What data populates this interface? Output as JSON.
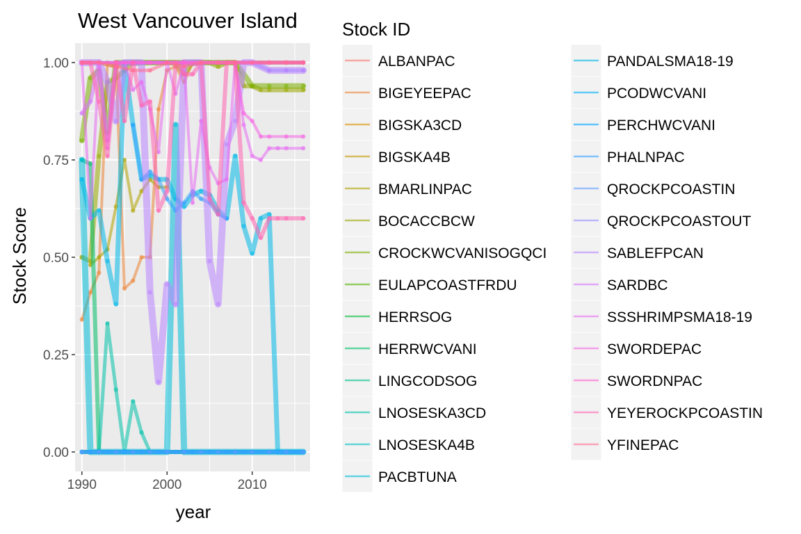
{
  "chart_data": {
    "type": "line",
    "title": "West Vancouver Island",
    "xlabel": "year",
    "ylabel": "Stock Score",
    "xlim": [
      1989.2,
      2016.8
    ],
    "ylim": [
      -0.05,
      1.05
    ],
    "x_ticks": [
      1990,
      2000,
      2010
    ],
    "y_ticks": [
      0.0,
      0.25,
      0.5,
      0.75,
      1.0
    ],
    "y_tick_labels": [
      "0.00",
      "0.25",
      "0.50",
      "0.75",
      "1.00"
    ],
    "grid": true,
    "legend": {
      "title": "Stock ID",
      "placement": "right",
      "columns": 2
    },
    "series": [
      {
        "name": "ALBANPAC",
        "color": "#F8766D",
        "x": [
          1990,
          1995,
          2000,
          2005,
          2010,
          2016
        ],
        "y": [
          1,
          1,
          1,
          1,
          1,
          1
        ]
      },
      {
        "name": "BIGEYEEPAC",
        "color": "#EB8335",
        "x": [
          1990,
          1991,
          1992,
          1993,
          1994,
          1995,
          1996,
          1997,
          1998,
          1999,
          2000,
          2001,
          2002,
          2003,
          2004,
          2005,
          2006,
          2007,
          2008,
          2009,
          2010,
          2011,
          2012,
          2014,
          2016
        ],
        "y": [
          0.34,
          0.41,
          0.46,
          1,
          0.99,
          0.42,
          0.44,
          0.5,
          0.5,
          0.88,
          0.98,
          0.99,
          0.95,
          1,
          1,
          1,
          1,
          1,
          1,
          1,
          1,
          1,
          1,
          1,
          1
        ]
      },
      {
        "name": "BIGSKA3CD",
        "color": "#DA8F00",
        "x": [
          1990,
          1992,
          1994,
          1995,
          1996,
          1997,
          1998,
          2000,
          2002,
          2004,
          2008
        ],
        "y": [
          0.0,
          0.0,
          0.0,
          0.0,
          0.0,
          0.0,
          0.0,
          0.0,
          0.0,
          0.0,
          0.0
        ]
      },
      {
        "name": "BIGSKA4B",
        "color": "#C49A00",
        "x": [
          1990,
          1992,
          1994,
          1996,
          1998,
          2000,
          2002,
          2004,
          2006,
          2008,
          2010,
          2012,
          2014,
          2016
        ],
        "y": [
          1,
          1,
          0.99,
          1,
          1,
          1,
          1,
          1,
          1,
          1,
          1,
          1,
          1,
          1
        ]
      },
      {
        "name": "BMARLINPAC",
        "color": "#AEA200",
        "x": [
          1991,
          1992,
          1993,
          1994,
          1995,
          1996,
          1997,
          1998,
          1999,
          2000
        ],
        "y": [
          0.48,
          0.5,
          0.52,
          0.63,
          0.75,
          0.62,
          0.67,
          0.7,
          0.68,
          0.68
        ]
      },
      {
        "name": "BOCACCBCW",
        "color": "#99A800",
        "x": [
          1990,
          1991,
          1992,
          1993,
          1994,
          1995,
          1996,
          1997,
          1998,
          1999,
          2000,
          2001,
          2002,
          2003,
          2004,
          2005,
          2006,
          2007,
          2008,
          2009,
          2010,
          2011,
          2012,
          2014,
          2016
        ],
        "y": [
          0.5,
          0.49,
          0.76,
          0.95,
          0.96,
          0.98,
          1,
          1,
          1,
          1,
          1,
          1,
          0.97,
          1,
          1,
          1,
          0.99,
          1,
          1,
          0.94,
          0.94,
          0.93,
          0.93,
          0.93,
          0.93
        ]
      },
      {
        "name": "CROCKWCVANISOGQCI",
        "color": "#7CAE00",
        "x": [
          1990,
          1991,
          1992,
          1993,
          1994,
          1995,
          1996,
          1998,
          2000,
          2002,
          2004,
          2006,
          2008,
          2010,
          2012,
          2014,
          2016
        ],
        "y": [
          0.8,
          0.96,
          0.98,
          0.82,
          1,
          1,
          1,
          1,
          1,
          1,
          1,
          1,
          1,
          0.94,
          0.94,
          0.94,
          0.94
        ]
      },
      {
        "name": "EULAPCOASTFRDU",
        "color": "#53B400",
        "x": [
          1990,
          1992,
          1994,
          1996,
          1998,
          2000,
          2002,
          2004,
          2006,
          2008,
          2010,
          2012,
          2014,
          2016
        ],
        "y": [
          0,
          0,
          0,
          0,
          0,
          0,
          0,
          0,
          0,
          0,
          0,
          0,
          0,
          0
        ]
      },
      {
        "name": "HERRSOG",
        "color": "#00BA38",
        "x": [
          1990,
          1992,
          1994,
          1996,
          1998,
          2000,
          2002,
          2004,
          2006,
          2008,
          2010,
          2012,
          2014,
          2016
        ],
        "y": [
          0,
          0,
          0,
          0,
          0,
          0,
          0,
          0,
          0,
          0,
          0,
          0,
          0,
          0
        ]
      },
      {
        "name": "HERRWCVANI",
        "color": "#00BE67",
        "x": [
          1990,
          1991,
          1992,
          1993,
          1994,
          1995,
          1996,
          1997,
          1998,
          1999,
          2000,
          2002,
          2004,
          2006,
          2008,
          2010,
          2012,
          2014,
          2016
        ],
        "y": [
          0.75,
          0.74,
          0.0,
          0.0,
          0.0,
          0.0,
          0.0,
          0.0,
          0.0,
          0.0,
          0.0,
          0.0,
          0.0,
          0.0,
          0.0,
          0.0,
          0.0,
          0.0,
          0.0
        ]
      },
      {
        "name": "LINGCODSOG",
        "color": "#00C08B",
        "x": [
          1990,
          1991,
          1992,
          1994,
          1996,
          1998,
          2000,
          2002,
          2004,
          2006,
          2008,
          2010,
          2012,
          2014,
          2016
        ],
        "y": [
          0.0,
          0.0,
          0.0,
          0.0,
          0.0,
          0.0,
          0.0,
          0.0,
          0.0,
          0.0,
          0.0,
          0.0,
          0.0,
          0.0,
          0.0
        ]
      },
      {
        "name": "LNOSESKA3CD",
        "color": "#00C1AA",
        "x": [
          1990,
          1991,
          1992,
          1993,
          1994,
          1995,
          1996,
          1997,
          1998,
          2000,
          2002,
          2004,
          2006,
          2008,
          2010,
          2012,
          2014,
          2016
        ],
        "y": [
          0.0,
          0.0,
          0.0,
          0.33,
          0.16,
          0.0,
          0.13,
          0.05,
          0.0,
          0.0,
          0.0,
          0.0,
          0.0,
          0.0,
          0.0,
          0.0,
          0.0,
          0.0
        ]
      },
      {
        "name": "LNOSESKA4B",
        "color": "#00BFC4",
        "x": [
          1990,
          1991,
          1992,
          1994,
          1996,
          1998,
          2000,
          2002,
          2004,
          2006,
          2008,
          2010,
          2012,
          2014,
          2016
        ],
        "y": [
          0,
          0,
          0,
          0,
          0,
          0,
          0,
          0,
          0,
          0,
          0,
          0,
          0,
          0,
          0
        ]
      },
      {
        "name": "PACBTUNA",
        "color": "#00BCD8",
        "x": [
          1990,
          1991,
          1992,
          1993,
          1994,
          1995,
          1996,
          1997,
          1998,
          1999,
          2000,
          2001,
          2002,
          2003,
          2004,
          2006,
          2008,
          2010,
          2012,
          2014,
          2016
        ],
        "y": [
          0.75,
          0.0,
          0.0,
          0.0,
          0.0,
          0.0,
          0.0,
          0.0,
          0.0,
          0.0,
          0.0,
          0.84,
          0.0,
          0.0,
          0.0,
          0.0,
          0.0,
          0.0,
          0.0,
          0.0,
          0.0
        ]
      },
      {
        "name": "PANDALSMA18-19",
        "color": "#00B8E7",
        "x": [
          1990,
          1991,
          1992,
          1993,
          1994,
          1995,
          1996,
          1997,
          1998,
          1999,
          2000,
          2001,
          2002,
          2003,
          2004,
          2005,
          2006,
          2007,
          2008,
          2009,
          2010,
          2011,
          2012,
          2013,
          2014,
          2016
        ],
        "y": [
          0.7,
          0.6,
          0.62,
          0.49,
          0.38,
          1,
          0.84,
          0.7,
          0.71,
          0.7,
          0.7,
          0.65,
          0.63,
          0.66,
          0.67,
          0.66,
          0.62,
          0.6,
          0.76,
          0.58,
          0.51,
          0.6,
          0.61,
          0.0,
          0.0,
          0.0
        ]
      },
      {
        "name": "PCODWCVANI",
        "color": "#00B0F6",
        "x": [
          1990,
          1992,
          1994,
          1996,
          1998,
          2000,
          2002,
          2004,
          2006,
          2008,
          2010,
          2012,
          2014,
          2016
        ],
        "y": [
          0,
          0,
          0,
          0,
          0,
          0,
          0,
          0,
          0,
          0,
          0,
          0,
          0,
          0
        ]
      },
      {
        "name": "PERCHWCVANI",
        "color": "#00A5FF",
        "x": [
          1990,
          1991,
          1992,
          1993,
          1994,
          1995,
          1996,
          1997,
          1998,
          1999,
          2000,
          2001,
          2002,
          2003,
          2004,
          2005,
          2006,
          2007,
          2008,
          2009,
          2010,
          2012,
          2014,
          2016
        ],
        "y": [
          0.0,
          0.0,
          0.0,
          0.0,
          0.0,
          0.0,
          0.0,
          0.0,
          0.0,
          0.0,
          0.0,
          0.0,
          0.0,
          0.0,
          0.0,
          0.0,
          0.0,
          0.0,
          0.0,
          0.0,
          0.0,
          0.0,
          0.0,
          0.0
        ]
      },
      {
        "name": "PHALNPAC",
        "color": "#35A2FF",
        "x": [
          1996,
          1997,
          1998,
          1999,
          2000,
          2001,
          2002,
          2003,
          2004,
          2005,
          2006,
          2007
        ],
        "y": [
          0.84,
          0.7,
          0.72,
          0.7,
          0.65,
          0.62,
          0.64,
          0.67,
          0.65,
          0.64,
          0.61,
          0.6
        ]
      },
      {
        "name": "QROCKPCOASTIN",
        "color": "#619CFF",
        "x": [
          1990,
          1992,
          1994,
          1996,
          1998,
          2000,
          2002,
          2004,
          2006,
          2008,
          2010,
          2012,
          2014,
          2016
        ],
        "y": [
          0,
          0,
          0,
          0,
          0,
          0,
          0,
          0,
          0,
          0,
          0,
          0,
          0,
          0
        ]
      },
      {
        "name": "QROCKPCOASTOUT",
        "color": "#9590FF",
        "x": [
          1990,
          1992,
          1994,
          1996,
          1998,
          2000,
          2002,
          2004,
          2006,
          2008,
          2010,
          2012,
          2014,
          2016
        ],
        "y": [
          1,
          1,
          1,
          1,
          1,
          1,
          1,
          1,
          1,
          1,
          1,
          0.98,
          0.98,
          0.98
        ]
      },
      {
        "name": "SABLEFPCAN",
        "color": "#B983FF",
        "x": [
          1990,
          1991,
          1992,
          1993,
          1994,
          1995,
          1996,
          1997,
          1998,
          1999,
          2000,
          2001,
          2002,
          2003,
          2004,
          2005,
          2006,
          2007,
          2008,
          2009,
          2010,
          2012,
          2014,
          2016
        ],
        "y": [
          1,
          1,
          1,
          0.95,
          0.85,
          1,
          1,
          1,
          0.41,
          0.18,
          0.43,
          0.38,
          1,
          1,
          1,
          0.49,
          0.38,
          0.79,
          0.85,
          1,
          1,
          0.98,
          0.98,
          0.98
        ]
      },
      {
        "name": "SARDBC",
        "color": "#D575FE",
        "x": [
          1990,
          1991,
          1992,
          1993,
          1994,
          1995,
          1996,
          1997,
          1998,
          1999,
          2000,
          2002,
          2004,
          2006,
          2008,
          2010,
          2012,
          2014,
          2016
        ],
        "y": [
          0.87,
          0.9,
          1,
          0.8,
          1,
          1,
          1,
          1,
          1,
          1,
          1,
          1,
          1,
          1,
          1,
          1,
          1,
          1,
          1
        ]
      },
      {
        "name": "SSSHRIMPSMA18-19",
        "color": "#E76BF3",
        "x": [
          1990,
          1991,
          1992,
          1993,
          1994,
          1995,
          1996,
          1997,
          1998,
          1999,
          2000,
          2001,
          2002,
          2003,
          2004,
          2005,
          2006,
          2007,
          2008,
          2009,
          2010,
          2011,
          2012,
          2013,
          2014,
          2016
        ],
        "y": [
          1,
          0.6,
          1,
          0.78,
          0.99,
          1,
          0.93,
          0.95,
          0.88,
          0.77,
          1,
          0.92,
          1,
          0.64,
          0.85,
          0.73,
          0.69,
          0.7,
          1,
          0.84,
          0.76,
          0.75,
          0.78,
          0.78,
          0.78,
          0.78
        ]
      },
      {
        "name": "SWORDEPAC",
        "color": "#F564E3",
        "x": [
          1990,
          1992,
          1994,
          1996,
          1998,
          2000,
          2002,
          2004,
          2006,
          2008,
          2009,
          2010,
          2011,
          2012,
          2014,
          2016
        ],
        "y": [
          1,
          1,
          1,
          1,
          1,
          1,
          1,
          1,
          1,
          1,
          0.87,
          0.85,
          0.81,
          0.81,
          0.81,
          0.81
        ]
      },
      {
        "name": "SWORDNPAC",
        "color": "#FD61D1",
        "x": [
          1990,
          1992,
          1994,
          1996,
          1998,
          2000,
          2002,
          2004,
          2006,
          2008,
          2010,
          2012,
          2014,
          2016
        ],
        "y": [
          1,
          1,
          1,
          1,
          1,
          1,
          1,
          1,
          1,
          1,
          1,
          1,
          1,
          1
        ]
      },
      {
        "name": "YEYEROCKPCOASTIN",
        "color": "#FF64B0",
        "x": [
          1990,
          1991,
          1992,
          1993,
          1994,
          1995,
          1996,
          1997,
          1998,
          1999,
          2000,
          2001,
          2002,
          2003,
          2004,
          2005,
          2006,
          2007,
          2008,
          2009,
          2010,
          2011,
          2012,
          2013,
          2014,
          2016
        ],
        "y": [
          1,
          1,
          0.9,
          0.76,
          1,
          0.85,
          1,
          0.89,
          0.9,
          0.62,
          0.67,
          1,
          0.97,
          0.97,
          1,
          0.65,
          0.61,
          1,
          1,
          0.64,
          0.6,
          0.55,
          0.6,
          0.6,
          0.6,
          0.6
        ]
      },
      {
        "name": "YFINEPAC",
        "color": "#FF6C91",
        "x": [
          1990,
          1992,
          1994,
          1996,
          1998,
          2000,
          2002,
          2004,
          2006,
          2008,
          2010,
          2012,
          2014,
          2016
        ],
        "y": [
          1,
          1,
          0.99,
          0.98,
          0.98,
          1,
          0.99,
          1,
          1,
          1,
          1,
          1,
          1,
          1
        ]
      }
    ]
  }
}
